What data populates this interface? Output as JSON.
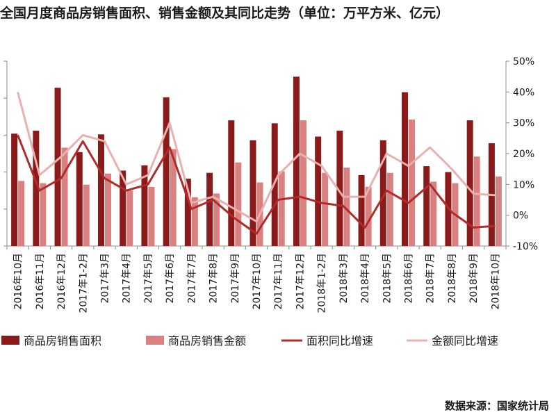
{
  "title": "全国月度商品房销售面积、销售金额及其同比走势（单位：万平方米、亿元）",
  "source": "数据来源：国家统计局",
  "chart_data": {
    "type": "bar",
    "title": "全国月度商品房销售面积、销售金额及其同比走势（单位：万平方米、亿元）",
    "categories": [
      "2016年10月",
      "2016年11月",
      "2016年12月",
      "2017年1-2月",
      "2017年3月",
      "2017年4月",
      "2017年5月",
      "2017年6月",
      "2017年7月",
      "2017年8月",
      "2017年9月",
      "2017年10月",
      "2017年11月",
      "2017年12月",
      "2018年1-2月",
      "2018年3月",
      "2018年4月",
      "2018年5月",
      "2018年6月",
      "2018年7月",
      "2018年8月",
      "2018年9月",
      "2018年10月"
    ],
    "series": [
      {
        "name": "商品房销售面积",
        "type": "bar",
        "axis": "left",
        "color": "#8b1a1a",
        "values": [
          15200,
          15600,
          21400,
          12700,
          15100,
          10200,
          10900,
          20100,
          9100,
          9900,
          17000,
          14300,
          16600,
          22900,
          14800,
          15600,
          9600,
          14300,
          20800,
          10800,
          10000,
          17000,
          13900
        ]
      },
      {
        "name": "商品房销售金额",
        "type": "bar",
        "axis": "left",
        "color": "#d98080",
        "values": [
          8800,
          8500,
          13300,
          8300,
          9800,
          7500,
          8000,
          13100,
          6600,
          7100,
          11300,
          8600,
          10100,
          17000,
          9900,
          10600,
          8000,
          9900,
          17100,
          8700,
          8500,
          12100,
          9400
        ]
      },
      {
        "name": "面积同比增速",
        "type": "line",
        "axis": "right",
        "color": "#b22a2a",
        "values": [
          26,
          8,
          12,
          24,
          12,
          8,
          10,
          22,
          2,
          5,
          -1,
          -6,
          5,
          6,
          4,
          3,
          -4,
          8,
          4,
          10,
          1,
          -4,
          -3.5
        ]
      },
      {
        "name": "金额同比增速",
        "type": "line",
        "axis": "right",
        "color": "#eab0b0",
        "values": [
          40,
          13,
          19,
          26,
          24,
          10,
          13,
          30,
          4,
          6,
          2,
          -2,
          13,
          20,
          16,
          6,
          6,
          20,
          16,
          22,
          15,
          7,
          6.5
        ]
      }
    ],
    "y_right": {
      "ticks": [
        "-10%",
        "0%",
        "10%",
        "20%",
        "30%",
        "40%",
        "50%"
      ],
      "range": [
        -10,
        50
      ]
    },
    "y_left": {
      "range": [
        0,
        25000
      ],
      "ticks_visible": false
    },
    "legend": {
      "placement": "bottom",
      "labels": [
        "商品房销售面积",
        "商品房销售金额",
        "面积同比增速",
        "金额同比增速"
      ]
    }
  }
}
